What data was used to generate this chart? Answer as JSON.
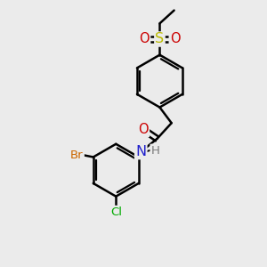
{
  "bg_color": "#ebebeb",
  "bond_color": "#000000",
  "bond_width": 1.8,
  "atom_colors": {
    "C": "#000000",
    "H": "#7a7a7a",
    "N": "#2222cc",
    "O": "#cc0000",
    "S": "#bbbb00",
    "Br": "#cc6600",
    "Cl": "#00aa00"
  },
  "font_size": 9.5
}
